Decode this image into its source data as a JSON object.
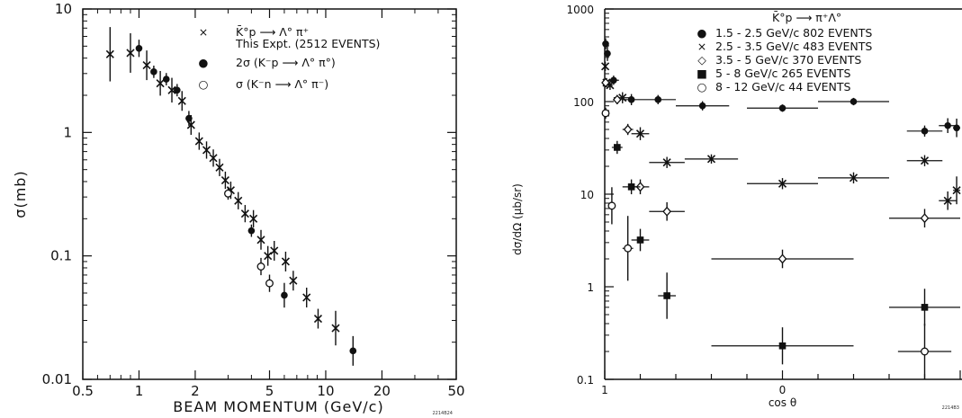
{
  "chart_data": [
    {
      "type": "scatter",
      "xlabel": "BEAM MOMENTUM (GeV/c)",
      "ylabel": "σ(mb)",
      "x_scale": "log",
      "y_scale": "log",
      "xlim": [
        0.5,
        50
      ],
      "ylim": [
        0.01,
        10
      ],
      "x_ticks": [
        0.5,
        1,
        2,
        5,
        10,
        20,
        50
      ],
      "x_tick_labels": [
        "0.5",
        "1",
        "2",
        "5",
        "10",
        "20",
        "50"
      ],
      "y_ticks": [
        0.01,
        0.1,
        1,
        10
      ],
      "y_tick_labels": [
        "0.01",
        "0.1",
        "1",
        "10"
      ],
      "corner_code": "2214B24",
      "legend": [
        {
          "symbol": "×",
          "lines": [
            "K̄°p ⟶ Λ° π⁺",
            "This Expt. (2512 EVENTS)"
          ]
        },
        {
          "symbol": "●",
          "lines": [
            "2σ (K⁻p ⟶ Λ° π°)"
          ]
        },
        {
          "symbol": "○",
          "lines": [
            "σ (K⁻n ⟶ Λ° π⁻)"
          ]
        }
      ],
      "series": [
        {
          "name": "K̄°p → Λ°π⁺ This Expt. (2512 EVENTS)",
          "marker": "cross",
          "points": [
            {
              "x": 0.7,
              "y": 4.3,
              "err": 0.22
            },
            {
              "x": 0.9,
              "y": 4.4,
              "err": 0.16
            },
            {
              "x": 1.1,
              "y": 3.5,
              "err": 0.12
            },
            {
              "x": 1.3,
              "y": 2.5,
              "err": 0.1
            },
            {
              "x": 1.5,
              "y": 2.2,
              "err": 0.1
            },
            {
              "x": 1.7,
              "y": 1.8,
              "err": 0.08
            },
            {
              "x": 1.9,
              "y": 1.15,
              "err": 0.08
            },
            {
              "x": 2.1,
              "y": 0.85,
              "err": 0.07
            },
            {
              "x": 2.3,
              "y": 0.72,
              "err": 0.07
            },
            {
              "x": 2.5,
              "y": 0.62,
              "err": 0.07
            },
            {
              "x": 2.7,
              "y": 0.52,
              "err": 0.07
            },
            {
              "x": 2.9,
              "y": 0.41,
              "err": 0.07
            },
            {
              "x": 3.1,
              "y": 0.34,
              "err": 0.07
            },
            {
              "x": 3.4,
              "y": 0.28,
              "err": 0.07
            },
            {
              "x": 3.7,
              "y": 0.22,
              "err": 0.07
            },
            {
              "x": 4.1,
              "y": 0.2,
              "err": 0.07
            },
            {
              "x": 4.5,
              "y": 0.135,
              "err": 0.08
            },
            {
              "x": 4.9,
              "y": 0.1,
              "err": 0.08
            },
            {
              "x": 5.3,
              "y": 0.11,
              "err": 0.08
            },
            {
              "x": 6.1,
              "y": 0.09,
              "err": 0.08
            },
            {
              "x": 6.7,
              "y": 0.063,
              "err": 0.08
            },
            {
              "x": 7.9,
              "y": 0.046,
              "err": 0.08
            },
            {
              "x": 9.1,
              "y": 0.031,
              "err": 0.08
            },
            {
              "x": 11.3,
              "y": 0.026,
              "err": 0.14
            }
          ]
        },
        {
          "name": "2σ (K⁻p → Λ°π°)",
          "marker": "filled-circle",
          "points": [
            {
              "x": 1.0,
              "y": 4.8,
              "err": 0.07
            },
            {
              "x": 1.2,
              "y": 3.1,
              "err": 0.05
            },
            {
              "x": 1.4,
              "y": 2.7,
              "err": 0.05
            },
            {
              "x": 1.6,
              "y": 2.2,
              "err": 0.05
            },
            {
              "x": 1.85,
              "y": 1.3,
              "err": 0.06
            },
            {
              "x": 4.0,
              "y": 0.16,
              "err": 0.05
            },
            {
              "x": 6.0,
              "y": 0.048,
              "err": 0.1
            },
            {
              "x": 14.0,
              "y": 0.017,
              "err": 0.12
            }
          ]
        },
        {
          "name": "σ (K⁻n → Λ°π⁻)",
          "marker": "open-circle",
          "points": [
            {
              "x": 3.0,
              "y": 0.32,
              "err": 0.05
            },
            {
              "x": 4.5,
              "y": 0.082,
              "err": 0.07
            },
            {
              "x": 5.0,
              "y": 0.06,
              "err": 0.07
            }
          ]
        }
      ]
    },
    {
      "type": "scatter",
      "xlabel": "cos θ",
      "ylabel": "dσ/dΩ (μb/sr)",
      "y_scale": "log",
      "xlim": [
        -1,
        1
      ],
      "ylim": [
        0.1,
        1000
      ],
      "x_tick_labels": [
        "1",
        "0"
      ],
      "y_ticks": [
        0.1,
        1,
        10,
        100,
        1000
      ],
      "y_tick_labels": [
        "0.1",
        "1",
        "10",
        "100",
        "1000"
      ],
      "corner_code": "2214B3",
      "legend_title": "K̄°p ⟶ π⁺Λ°",
      "legend": [
        {
          "symbol": "●",
          "text": "1.5 - 2.5 GeV/c  802 EVENTS"
        },
        {
          "symbol": "×",
          "text": "2.5 - 3.5 GeV/c  483 EVENTS"
        },
        {
          "symbol": "◇",
          "text": "3.5 - 5    GeV/c  370 EVENTS"
        },
        {
          "symbol": "■",
          "text": "5 - 8    GeV/c  265 EVENTS"
        },
        {
          "symbol": "○",
          "text": "8 - 12   GeV/c  44 EVENTS"
        }
      ],
      "series": [
        {
          "name": "1.5 - 2.5 GeV/c 802 EVENTS",
          "marker": "filled-circle",
          "points": [
            {
              "x": -0.995,
              "y": 420,
              "xerr": 0.005,
              "err": 0.06
            },
            {
              "x": -0.985,
              "y": 330,
              "xerr": 0.012,
              "err": 0.08
            },
            {
              "x": -0.95,
              "y": 170,
              "xerr": 0.03,
              "err": 0.05
            },
            {
              "x": -0.85,
              "y": 105,
              "xerr": 0.05,
              "err": 0.06
            },
            {
              "x": -0.7,
              "y": 105,
              "xerr": 0.1,
              "err": 0.05
            },
            {
              "x": -0.45,
              "y": 90,
              "xerr": 0.15,
              "err": 0.05
            },
            {
              "x": 0.0,
              "y": 85,
              "xerr": 0.2,
              "err": 0.04
            },
            {
              "x": 0.4,
              "y": 100,
              "xerr": 0.2,
              "err": 0.04
            },
            {
              "x": 0.8,
              "y": 48,
              "xerr": 0.1,
              "err": 0.06
            },
            {
              "x": 0.93,
              "y": 55,
              "xerr": 0.05,
              "err": 0.08
            },
            {
              "x": 0.98,
              "y": 52,
              "xerr": 0.02,
              "err": 0.1
            }
          ]
        },
        {
          "name": "2.5 - 3.5 GeV/c 483 EVENTS",
          "marker": "cross",
          "points": [
            {
              "x": -0.997,
              "y": 240,
              "xerr": 0.003,
              "err": 0.05
            },
            {
              "x": -0.99,
              "y": 160,
              "xerr": 0.008,
              "err": 0.05
            },
            {
              "x": -0.97,
              "y": 150,
              "xerr": 0.015,
              "err": 0.05
            },
            {
              "x": -0.9,
              "y": 110,
              "xerr": 0.05,
              "err": 0.06
            },
            {
              "x": -0.8,
              "y": 45,
              "xerr": 0.05,
              "err": 0.07
            },
            {
              "x": -0.65,
              "y": 22,
              "xerr": 0.1,
              "err": 0.06
            },
            {
              "x": -0.4,
              "y": 24,
              "xerr": 0.15,
              "err": 0.05
            },
            {
              "x": 0.0,
              "y": 13,
              "xerr": 0.2,
              "err": 0.06
            },
            {
              "x": 0.4,
              "y": 15,
              "xerr": 0.2,
              "err": 0.06
            },
            {
              "x": 0.8,
              "y": 23,
              "xerr": 0.1,
              "err": 0.06
            },
            {
              "x": 0.93,
              "y": 8.5,
              "xerr": 0.05,
              "err": 0.1
            },
            {
              "x": 0.98,
              "y": 11,
              "xerr": 0.02,
              "err": 0.15
            }
          ]
        },
        {
          "name": "3.5 - 5 GeV/c 370 EVENTS",
          "marker": "open-diamond",
          "points": [
            {
              "x": -0.995,
              "y": 160,
              "xerr": 0.005,
              "err": 0.04
            },
            {
              "x": -0.93,
              "y": 105,
              "xerr": 0.02,
              "err": 0.05
            },
            {
              "x": -0.87,
              "y": 50,
              "xerr": 0.03,
              "err": 0.06
            },
            {
              "x": -0.8,
              "y": 12,
              "xerr": 0.05,
              "err": 0.08
            },
            {
              "x": -0.65,
              "y": 6.5,
              "xerr": 0.1,
              "err": 0.1
            },
            {
              "x": 0.0,
              "y": 2.0,
              "xerr": 0.4,
              "err": 0.1
            },
            {
              "x": 0.8,
              "y": 5.5,
              "xerr": 0.2,
              "err": 0.1
            }
          ]
        },
        {
          "name": "5 - 8 GeV/c 265 EVENTS",
          "marker": "filled-square",
          "points": [
            {
              "x": -0.93,
              "y": 32,
              "xerr": 0.03,
              "err": 0.07
            },
            {
              "x": -0.85,
              "y": 12,
              "xerr": 0.05,
              "err": 0.08
            },
            {
              "x": -0.8,
              "y": 3.2,
              "xerr": 0.05,
              "err": 0.12
            },
            {
              "x": -0.65,
              "y": 0.8,
              "xerr": 0.05,
              "err": 0.25
            },
            {
              "x": 0.0,
              "y": 0.23,
              "xerr": 0.4,
              "err": 0.2
            },
            {
              "x": 0.8,
              "y": 0.6,
              "xerr": 0.2,
              "err": 0.2
            }
          ]
        },
        {
          "name": "8 - 12 GeV/c 44 EVENTS",
          "marker": "open-circle",
          "points": [
            {
              "x": -0.995,
              "y": 75,
              "xerr": 0.005,
              "err": 0.06
            },
            {
              "x": -0.96,
              "y": 7.5,
              "xerr": 0.02,
              "err": 0.2
            },
            {
              "x": -0.87,
              "y": 2.6,
              "xerr": 0.03,
              "err": 0.35
            },
            {
              "x": 0.8,
              "y": 0.2,
              "xerr": 0.15,
              "err": 0.3
            }
          ]
        }
      ]
    }
  ]
}
